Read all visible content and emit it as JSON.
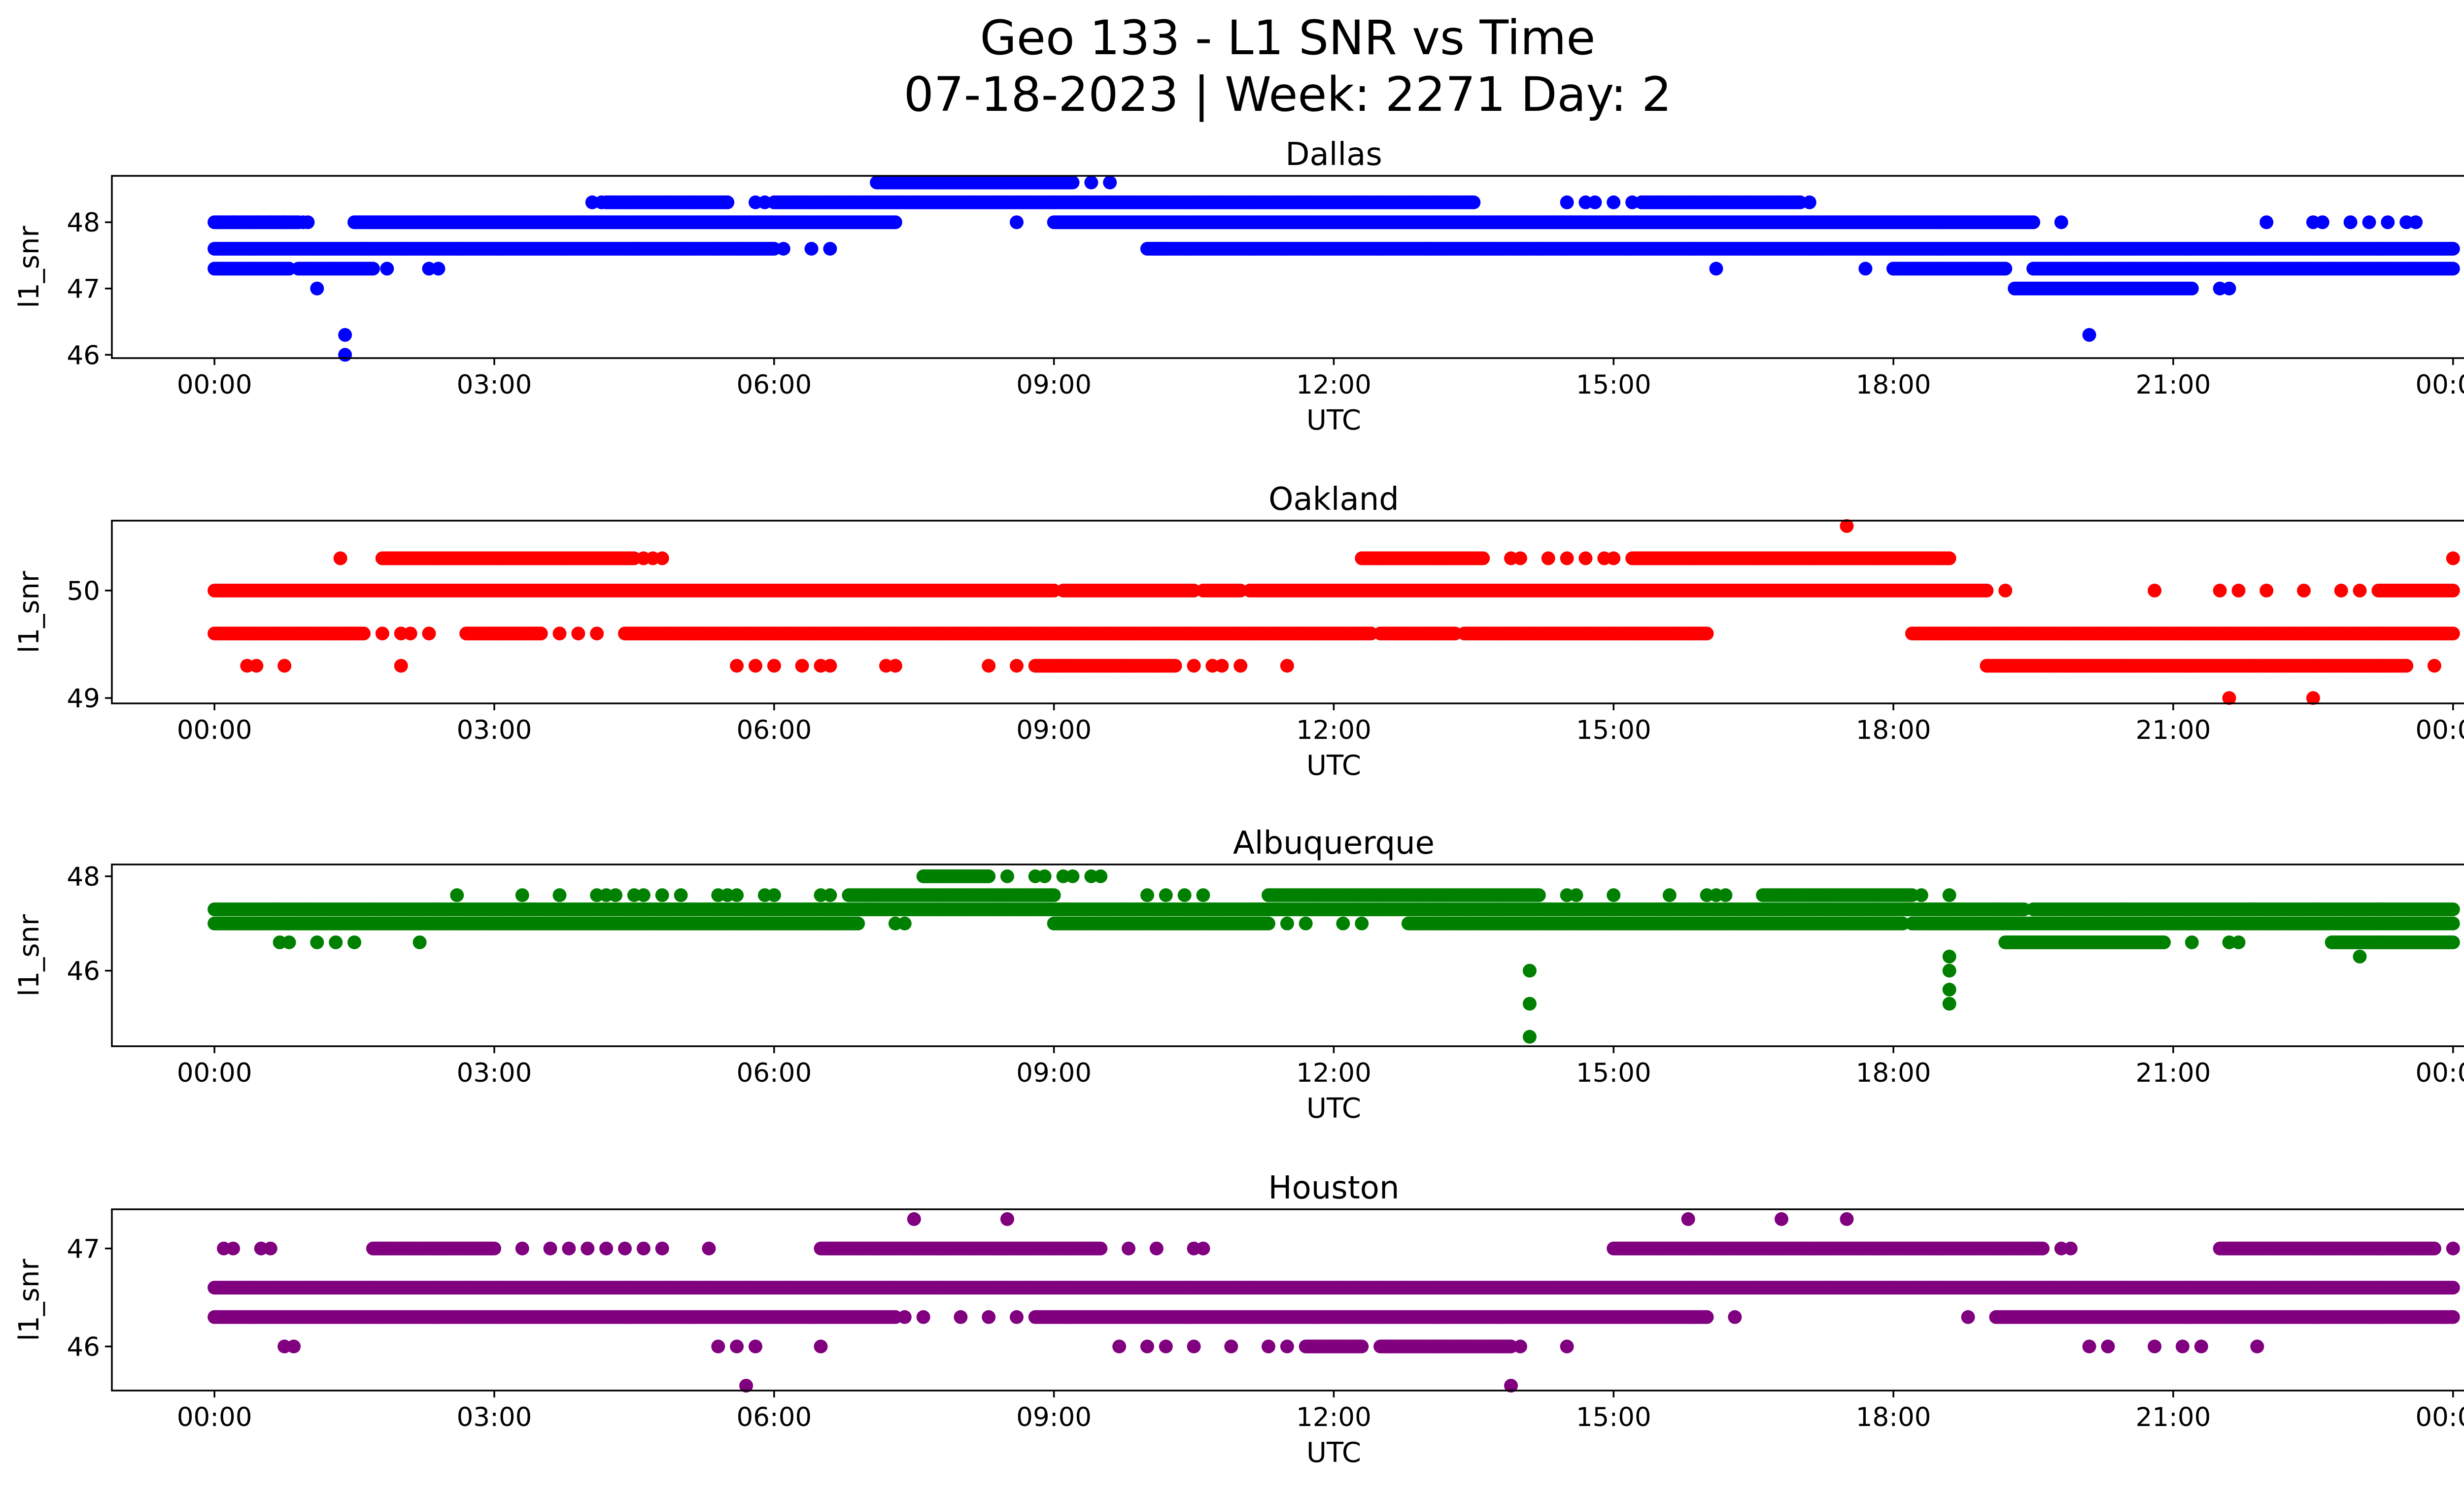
{
  "title_line1": "Geo 133 - L1 SNR vs Time",
  "title_line2": "07-18-2023 | Week: 2271 Day: 2",
  "chart_data": [
    {
      "type": "scatter",
      "title": "Dallas",
      "xlabel": "UTC",
      "ylabel": "l1_snr",
      "color": "#0000ff",
      "xlim_hours": [
        -1.1,
        25.1
      ],
      "ylim": [
        45.95,
        48.7
      ],
      "yticks": [
        46,
        47,
        48
      ],
      "xtick_labels": [
        "00:00",
        "03:00",
        "06:00",
        "09:00",
        "12:00",
        "15:00",
        "18:00",
        "21:00",
        "00:00"
      ],
      "levels": [
        {
          "y": 48.0,
          "segments": [
            [
              0,
              0.9
            ],
            [
              1.5,
              7.3
            ],
            [
              9.0,
              19.5
            ]
          ],
          "points": [
            0.05,
            0.2,
            0.3,
            0.45,
            0.6,
            0.75,
            0.95,
            1.0,
            8.6,
            19.8,
            22.0,
            22.5,
            22.6,
            22.9,
            23.1,
            23.3,
            23.5,
            23.6
          ]
        },
        {
          "y": 47.6,
          "segments": [
            [
              0,
              1.6
            ],
            [
              1.6,
              4.5
            ],
            [
              4.5,
              6.0
            ],
            [
              10.0,
              14.2
            ],
            [
              14.2,
              24.0
            ]
          ],
          "points": [
            2.0,
            2.6,
            5.0,
            5.4,
            5.6,
            6.1,
            6.4,
            6.6,
            10.1,
            10.2,
            11.5,
            13.0,
            13.6,
            13.7,
            14.0
          ]
        },
        {
          "y": 47.3,
          "segments": [
            [
              0,
              0.8
            ],
            [
              0.9,
              1.7
            ],
            [
              18.0,
              19.2
            ],
            [
              19.5,
              24.0
            ]
          ],
          "points": [
            1.85,
            2.3,
            2.4,
            16.1,
            17.7,
            18.0
          ]
        },
        {
          "y": 48.3,
          "segments": [
            [
              4.2,
              5.5
            ],
            [
              6.0,
              9.0
            ],
            [
              9.0,
              13.5
            ],
            [
              15.3,
              17.0
            ]
          ],
          "points": [
            4.05,
            4.15,
            5.8,
            5.9,
            14.5,
            14.7,
            14.8,
            15.0,
            15.2,
            17.1
          ]
        },
        {
          "y": 48.6,
          "segments": [
            [
              7.1,
              9.2
            ]
          ],
          "points": [
            9.4,
            9.6
          ]
        },
        {
          "y": 47.0,
          "segments": [
            [
              19.3,
              21.2
            ]
          ],
          "points": [
            1.1,
            21.5,
            21.6
          ]
        },
        {
          "y": 46.3,
          "segments": [],
          "points": [
            1.4,
            20.1
          ]
        },
        {
          "y": 46.0,
          "segments": [],
          "points": [
            1.4
          ]
        }
      ]
    },
    {
      "type": "scatter",
      "title": "Oakland",
      "xlabel": "UTC",
      "ylabel": "l1_snr",
      "color": "#ff0000",
      "xlim_hours": [
        -1.1,
        25.1
      ],
      "ylim": [
        48.95,
        50.65
      ],
      "yticks": [
        49,
        50
      ],
      "xtick_labels": [
        "00:00",
        "03:00",
        "06:00",
        "09:00",
        "12:00",
        "15:00",
        "18:00",
        "21:00",
        "00:00"
      ],
      "levels": [
        {
          "y": 50.0,
          "segments": [
            [
              0,
              9.0
            ],
            [
              9.1,
              10.5
            ],
            [
              10.6,
              11.0
            ],
            [
              11.1,
              19.0
            ],
            [
              23.2,
              24.0
            ]
          ],
          "points": [
            19.2,
            20.8,
            21.5,
            21.7,
            22.0,
            22.4,
            22.8,
            23.0
          ]
        },
        {
          "y": 49.6,
          "segments": [
            [
              0,
              1.6
            ],
            [
              2.7,
              3.5
            ],
            [
              4.4,
              12.4
            ],
            [
              12.5,
              13.3
            ],
            [
              13.4,
              16.0
            ],
            [
              18.2,
              24.0
            ]
          ],
          "points": [
            1.8,
            2.0,
            2.1,
            2.3,
            3.7,
            3.9,
            4.1
          ]
        },
        {
          "y": 49.3,
          "segments": [
            [
              8.8,
              10.3
            ],
            [
              19.0,
              23.5
            ]
          ],
          "points": [
            0.35,
            0.45,
            0.75,
            2.0,
            5.6,
            5.8,
            6.0,
            6.3,
            6.5,
            6.6,
            7.2,
            7.3,
            8.3,
            8.6,
            10.5,
            10.7,
            10.8,
            11.0,
            11.5,
            23.8
          ]
        },
        {
          "y": 50.3,
          "segments": [
            [
              1.8,
              4.5
            ],
            [
              12.3,
              13.6
            ],
            [
              15.2,
              18.6
            ]
          ],
          "points": [
            1.35,
            4.6,
            4.7,
            4.8,
            13.9,
            14.0,
            14.3,
            14.5,
            14.7,
            14.9,
            15.0,
            24.0
          ]
        },
        {
          "y": 50.6,
          "segments": [],
          "points": [
            17.5
          ]
        },
        {
          "y": 49.0,
          "segments": [],
          "points": [
            21.6,
            22.5
          ]
        }
      ]
    },
    {
      "type": "scatter",
      "title": "Albuquerque",
      "xlabel": "UTC",
      "ylabel": "l1_snr",
      "color": "#008000",
      "xlim_hours": [
        -1.1,
        25.1
      ],
      "ylim": [
        44.4,
        48.25
      ],
      "yticks": [
        46,
        48
      ],
      "xtick_labels": [
        "00:00",
        "03:00",
        "06:00",
        "09:00",
        "12:00",
        "15:00",
        "18:00",
        "21:00",
        "00:00"
      ],
      "levels": [
        {
          "y": 47.3,
          "segments": [
            [
              0,
              7.0
            ],
            [
              7.0,
              11.2
            ],
            [
              11.2,
              19.4
            ],
            [
              19.5,
              24.0
            ]
          ],
          "points": []
        },
        {
          "y": 47.0,
          "segments": [
            [
              0,
              6.9
            ],
            [
              9.0,
              11.3
            ],
            [
              12.8,
              18.1
            ],
            [
              18.2,
              24.0
            ]
          ],
          "points": [
            7.3,
            7.4,
            11.5,
            11.7,
            12.1,
            12.3
          ]
        },
        {
          "y": 47.6,
          "segments": [
            [
              6.8,
              9.0
            ],
            [
              11.3,
              14.2
            ],
            [
              16.6,
              18.2
            ]
          ],
          "points": [
            2.6,
            3.3,
            3.7,
            4.1,
            4.2,
            4.3,
            4.5,
            4.6,
            4.8,
            5.0,
            5.4,
            5.5,
            5.6,
            5.9,
            6.0,
            6.5,
            6.6,
            10.0,
            10.2,
            10.4,
            10.6,
            14.5,
            14.6,
            15.0,
            15.6,
            16.0,
            16.1,
            16.2,
            18.3,
            18.6
          ]
        },
        {
          "y": 48.0,
          "segments": [
            [
              7.6,
              8.3
            ]
          ],
          "points": [
            8.5,
            8.8,
            8.9,
            9.1,
            9.2,
            9.4,
            9.5
          ]
        },
        {
          "y": 46.6,
          "segments": [
            [
              19.2,
              20.9
            ],
            [
              22.7,
              24.0
            ]
          ],
          "points": [
            0.7,
            0.8,
            1.1,
            1.3,
            1.5,
            2.2,
            21.2,
            21.6,
            21.7
          ]
        },
        {
          "y": 46.3,
          "segments": [],
          "points": [
            18.6,
            23.0
          ]
        },
        {
          "y": 46.0,
          "segments": [],
          "points": [
            14.1,
            18.6
          ]
        },
        {
          "y": 45.6,
          "segments": [],
          "points": [
            18.6
          ]
        },
        {
          "y": 45.3,
          "segments": [],
          "points": [
            14.1,
            18.6
          ]
        },
        {
          "y": 44.6,
          "segments": [],
          "points": [
            14.1
          ]
        }
      ]
    },
    {
      "type": "scatter",
      "title": "Houston",
      "xlabel": "UTC",
      "ylabel": "l1_snr",
      "color": "#800080",
      "xlim_hours": [
        -1.1,
        25.1
      ],
      "ylim": [
        45.55,
        47.4
      ],
      "yticks": [
        46,
        47
      ],
      "xtick_labels": [
        "00:00",
        "03:00",
        "06:00",
        "09:00",
        "12:00",
        "15:00",
        "18:00",
        "21:00",
        "00:00"
      ],
      "levels": [
        {
          "y": 46.6,
          "segments": [
            [
              0,
              24.0
            ]
          ],
          "points": []
        },
        {
          "y": 46.3,
          "segments": [
            [
              0,
              7.3
            ],
            [
              8.8,
              16.0
            ],
            [
              19.1,
              23.1
            ],
            [
              23.1,
              24.0
            ]
          ],
          "points": [
            7.4,
            7.6,
            8.0,
            8.3,
            8.6,
            16.3,
            18.8
          ]
        },
        {
          "y": 47.0,
          "segments": [
            [
              1.7,
              3.0
            ],
            [
              6.5,
              9.5
            ],
            [
              15.0,
              19.6
            ],
            [
              21.5,
              23.8
            ]
          ],
          "points": [
            0.1,
            0.2,
            0.5,
            0.6,
            3.3,
            3.6,
            3.8,
            4.0,
            4.2,
            4.4,
            4.6,
            4.8,
            5.3,
            9.8,
            10.1,
            10.5,
            10.6,
            19.8,
            19.9,
            24.0
          ]
        },
        {
          "y": 46.0,
          "segments": [
            [
              11.7,
              12.3
            ],
            [
              12.5,
              13.9
            ]
          ],
          "points": [
            0.75,
            0.85,
            5.4,
            5.6,
            5.8,
            6.5,
            9.7,
            10.0,
            10.2,
            10.5,
            10.9,
            11.3,
            11.5,
            12.6,
            14.0,
            14.5,
            20.1,
            20.3,
            20.8,
            21.1,
            21.3,
            21.9
          ]
        },
        {
          "y": 47.3,
          "segments": [],
          "points": [
            7.5,
            8.5,
            15.8,
            16.8,
            17.5
          ]
        },
        {
          "y": 45.6,
          "segments": [],
          "points": [
            5.7,
            13.9
          ]
        }
      ]
    }
  ]
}
